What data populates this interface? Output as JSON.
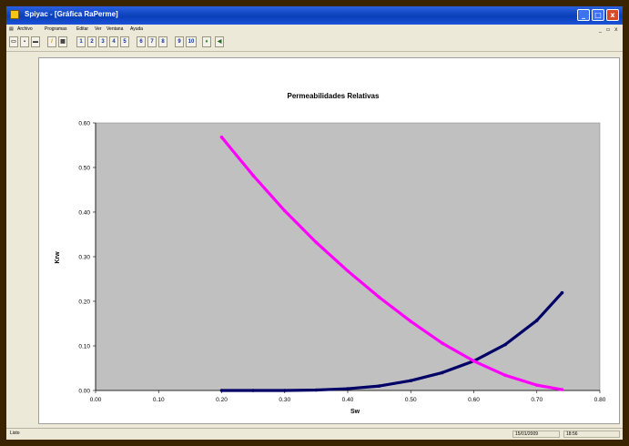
{
  "window": {
    "title": "Spiyac - [Gráfica RaPerme]",
    "app_icon": "app-icon",
    "controls": [
      "minimize-icon",
      "maximize-icon",
      "close-icon"
    ]
  },
  "menubar": {
    "system_icon": "document-icon",
    "items": [
      "Archivo",
      "Programas",
      "Editar",
      "Ver",
      "Ventana",
      "Ayuda"
    ],
    "mdi_controls": [
      "_",
      "▫",
      "x"
    ]
  },
  "toolbar": {
    "icons": [
      "new-icon",
      "save-icon",
      "disk-icon",
      "pencil-icon",
      "print-icon",
      "run-icon",
      "export-icon"
    ],
    "numbered_buttons": [
      "1",
      "2",
      "3",
      "4",
      "5",
      "6",
      "7",
      "8",
      "9",
      "10"
    ]
  },
  "status": {
    "left": "Listo",
    "date": "15/01/2009",
    "time": "18:56"
  },
  "colors": {
    "plot_background": "#c0c0c0",
    "krw_series": "#000066",
    "kro_series": "#ff00ff",
    "titlebar": "#0a3fb8"
  },
  "chart_data": {
    "type": "line",
    "title": "Permeabilidades Relativas",
    "xlabel": "Sw",
    "ylabel": "Krw",
    "xlim": [
      0.0,
      0.8
    ],
    "ylim": [
      0.0,
      0.6
    ],
    "x_ticks": [
      "0.00",
      "0.10",
      "0.20",
      "0.30",
      "0.40",
      "0.50",
      "0.60",
      "0.70",
      "0.80"
    ],
    "y_ticks": [
      "0.00",
      "0.10",
      "0.20",
      "0.30",
      "0.40",
      "0.50",
      "0.60"
    ],
    "grid": false,
    "legend": "none",
    "series": [
      {
        "color": "#000066",
        "x": [
          0.2,
          0.25,
          0.3,
          0.35,
          0.4,
          0.45,
          0.5,
          0.55,
          0.6,
          0.65,
          0.7,
          0.74
        ],
        "y": [
          0.0,
          0.0,
          0.0,
          0.001,
          0.004,
          0.01,
          0.022,
          0.04,
          0.066,
          0.103,
          0.157,
          0.219
        ]
      },
      {
        "color": "#ff00ff",
        "x": [
          0.2,
          0.25,
          0.3,
          0.35,
          0.4,
          0.45,
          0.5,
          0.55,
          0.6,
          0.65,
          0.7,
          0.74
        ],
        "y": [
          0.568,
          0.482,
          0.403,
          0.332,
          0.268,
          0.209,
          0.155,
          0.106,
          0.066,
          0.034,
          0.012,
          0.002
        ]
      }
    ]
  }
}
